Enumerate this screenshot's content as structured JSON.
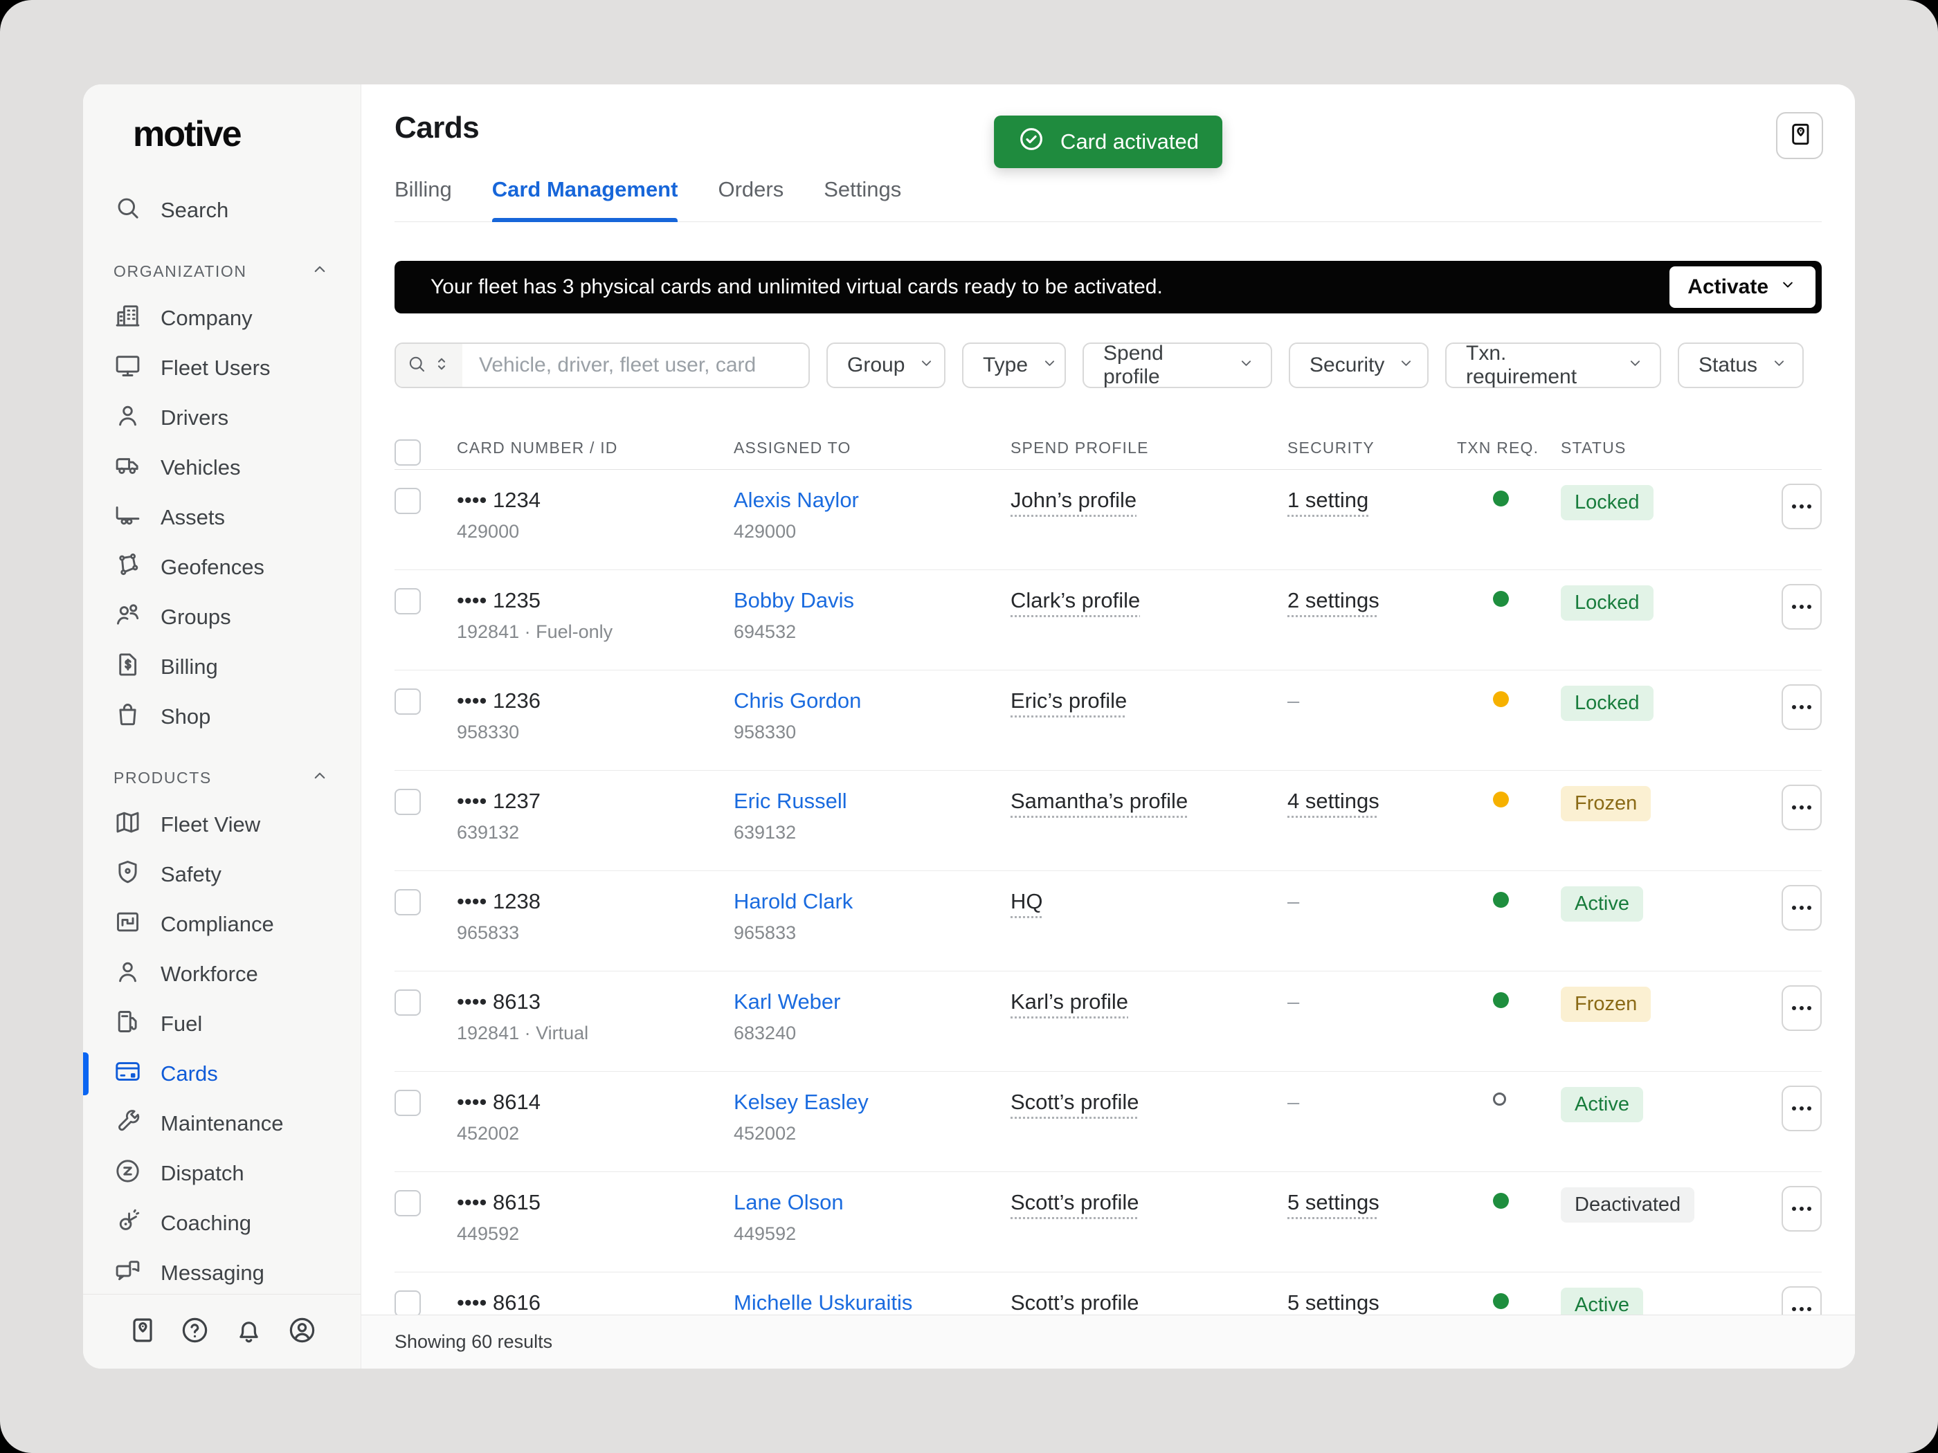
{
  "app": {
    "logo": "motive"
  },
  "sidebar": {
    "search_label": "Search",
    "sections": [
      {
        "label": "ORGANIZATION",
        "items": [
          {
            "icon": "company-icon",
            "label": "Company"
          },
          {
            "icon": "fleet-users-icon",
            "label": "Fleet Users"
          },
          {
            "icon": "drivers-icon",
            "label": "Drivers"
          },
          {
            "icon": "vehicles-icon",
            "label": "Vehicles"
          },
          {
            "icon": "assets-icon",
            "label": "Assets"
          },
          {
            "icon": "geofences-icon",
            "label": "Geofences"
          },
          {
            "icon": "groups-icon",
            "label": "Groups"
          },
          {
            "icon": "billing-icon",
            "label": "Billing"
          },
          {
            "icon": "shop-icon",
            "label": "Shop"
          }
        ]
      },
      {
        "label": "PRODUCTS",
        "items": [
          {
            "icon": "fleet-view-icon",
            "label": "Fleet View"
          },
          {
            "icon": "safety-icon",
            "label": "Safety"
          },
          {
            "icon": "compliance-icon",
            "label": "Compliance"
          },
          {
            "icon": "workforce-icon",
            "label": "Workforce"
          },
          {
            "icon": "fuel-icon",
            "label": "Fuel"
          },
          {
            "icon": "cards-icon",
            "label": "Cards",
            "active": true
          },
          {
            "icon": "maintenance-icon",
            "label": "Maintenance"
          },
          {
            "icon": "dispatch-icon",
            "label": "Dispatch"
          },
          {
            "icon": "coaching-icon",
            "label": "Coaching"
          },
          {
            "icon": "messaging-icon",
            "label": "Messaging"
          }
        ]
      }
    ],
    "footer_icons": [
      "guidebook-icon",
      "help-icon",
      "bell-icon",
      "account-icon"
    ]
  },
  "header": {
    "title": "Cards",
    "tabs": [
      {
        "label": "Billing",
        "active": false
      },
      {
        "label": "Card Management",
        "active": true
      },
      {
        "label": "Orders",
        "active": false
      },
      {
        "label": "Settings",
        "active": false
      }
    ],
    "toast": {
      "label": "Card activated"
    }
  },
  "banner": {
    "message": "Your fleet has 3 physical cards and unlimited virtual cards ready to be activated.",
    "action_label": "Activate"
  },
  "filters": {
    "search_placeholder": "Vehicle, driver, fleet user, card",
    "dropdowns": [
      "Group",
      "Type",
      "Spend profile",
      "Security",
      "Txn. requirement",
      "Status"
    ],
    "dropdown_widths": [
      172,
      150,
      274,
      202,
      312,
      182
    ]
  },
  "table": {
    "columns": [
      "CARD NUMBER / ID",
      "ASSIGNED TO",
      "SPEND PROFILE",
      "SECURITY",
      "TXN REQ.",
      "STATUS"
    ],
    "rows": [
      {
        "card": "•••• 1234",
        "card_sub": "429000",
        "assigned": "Alexis Naylor",
        "assigned_sub": "429000",
        "spend": "John’s profile",
        "security": "1 setting",
        "txn": "green",
        "status": "Locked",
        "status_variant": "green"
      },
      {
        "card": "•••• 1235",
        "card_sub": "192841 · Fuel-only",
        "assigned": "Bobby Davis",
        "assigned_sub": "694532",
        "spend": "Clark’s profile",
        "security": "2 settings",
        "txn": "green",
        "status": "Locked",
        "status_variant": "green"
      },
      {
        "card": "•••• 1236",
        "card_sub": "958330",
        "assigned": "Chris Gordon",
        "assigned_sub": "958330",
        "spend": "Eric’s profile",
        "security": "—",
        "txn": "amber",
        "status": "Locked",
        "status_variant": "green"
      },
      {
        "card": "•••• 1237",
        "card_sub": "639132",
        "assigned": "Eric Russell",
        "assigned_sub": "639132",
        "spend": "Samantha’s profile",
        "security": "4 settings",
        "txn": "amber",
        "status": "Frozen",
        "status_variant": "amber"
      },
      {
        "card": "•••• 1238",
        "card_sub": "965833",
        "assigned": "Harold Clark",
        "assigned_sub": "965833",
        "spend": "HQ",
        "security": "—",
        "txn": "green",
        "status": "Active",
        "status_variant": "green"
      },
      {
        "card": "•••• 8613",
        "card_sub": "192841 · Virtual",
        "assigned": "Karl Weber",
        "assigned_sub": "683240",
        "spend": "Karl’s profile",
        "security": "—",
        "txn": "green",
        "status": "Frozen",
        "status_variant": "amber"
      },
      {
        "card": "•••• 8614",
        "card_sub": "452002",
        "assigned": "Kelsey Easley",
        "assigned_sub": "452002",
        "spend": "Scott’s profile",
        "security": "—",
        "txn": "open",
        "status": "Active",
        "status_variant": "green"
      },
      {
        "card": "•••• 8615",
        "card_sub": "449592",
        "assigned": "Lane Olson",
        "assigned_sub": "449592",
        "spend": "Scott’s profile",
        "security": "5 settings",
        "txn": "green",
        "status": "Deactivated",
        "status_variant": "gray"
      },
      {
        "card": "•••• 8616",
        "card_sub": "",
        "assigned": "Michelle Uskuraitis",
        "assigned_sub": "",
        "spend": "Scott’s profile",
        "security": "5 settings",
        "txn": "green",
        "status": "Active",
        "status_variant": "green"
      }
    ]
  },
  "footer": {
    "summary": "Showing 60 results"
  },
  "colors": {
    "accent_blue": "#0f5bd8",
    "toast_green": "#1f8b3e",
    "badge_green_bg": "#e2f3e7",
    "badge_green_text": "#187c3c",
    "badge_amber_bg": "#fbf0d2",
    "badge_amber_text": "#8a6a16",
    "badge_gray_bg": "#f1f2f2",
    "dot_green": "#1e8e3e",
    "dot_amber": "#f6b100",
    "banner_bg": "#050505"
  }
}
